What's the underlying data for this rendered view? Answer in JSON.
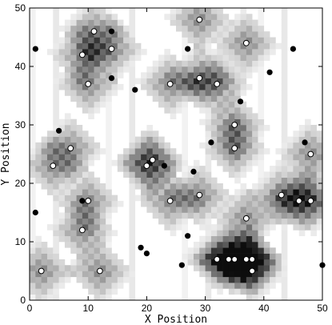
{
  "chart_data": {
    "type": "scatter",
    "title": "",
    "xlabel": "X Position",
    "ylabel": "Y Position",
    "xlim": [
      0,
      50
    ],
    "ylim": [
      0,
      50
    ],
    "xticks": [
      0,
      10,
      20,
      30,
      40,
      50
    ],
    "yticks": [
      0,
      10,
      20,
      30,
      40,
      50
    ],
    "grid": false,
    "background": "heatmap of gray squares (intensity field), darker near clusters of open circles",
    "series": [
      {
        "marker": "filled-circle",
        "color": "#000000",
        "points": [
          [
            1,
            43
          ],
          [
            1,
            15
          ],
          [
            5,
            29
          ],
          [
            9,
            17
          ],
          [
            14,
            46
          ],
          [
            14,
            38
          ],
          [
            18,
            36
          ],
          [
            19,
            9
          ],
          [
            20,
            8
          ],
          [
            23,
            23
          ],
          [
            26,
            6
          ],
          [
            27,
            43
          ],
          [
            27,
            11
          ],
          [
            28,
            22
          ],
          [
            31,
            27
          ],
          [
            36,
            34
          ],
          [
            41,
            39
          ],
          [
            45,
            43
          ],
          [
            47,
            27
          ],
          [
            50,
            6
          ]
        ]
      },
      {
        "marker": "open-circle",
        "color": "#000000",
        "points": [
          [
            2,
            5
          ],
          [
            4,
            23
          ],
          [
            7,
            26
          ],
          [
            9,
            42
          ],
          [
            9,
            12
          ],
          [
            10,
            37
          ],
          [
            10,
            17
          ],
          [
            11,
            46
          ],
          [
            14,
            43
          ],
          [
            12,
            5
          ],
          [
            20,
            23
          ],
          [
            21,
            24
          ],
          [
            24,
            37
          ],
          [
            24,
            17
          ],
          [
            29,
            48
          ],
          [
            29,
            38
          ],
          [
            29,
            18
          ],
          [
            32,
            37
          ],
          [
            35,
            30
          ],
          [
            35,
            26
          ],
          [
            32,
            7
          ],
          [
            34,
            7
          ],
          [
            35,
            7
          ],
          [
            37,
            7
          ],
          [
            38,
            7
          ],
          [
            38,
            5
          ],
          [
            37,
            44
          ],
          [
            37,
            14
          ],
          [
            43,
            18
          ],
          [
            46,
            17
          ],
          [
            48,
            17
          ],
          [
            48,
            25
          ]
        ]
      }
    ]
  }
}
